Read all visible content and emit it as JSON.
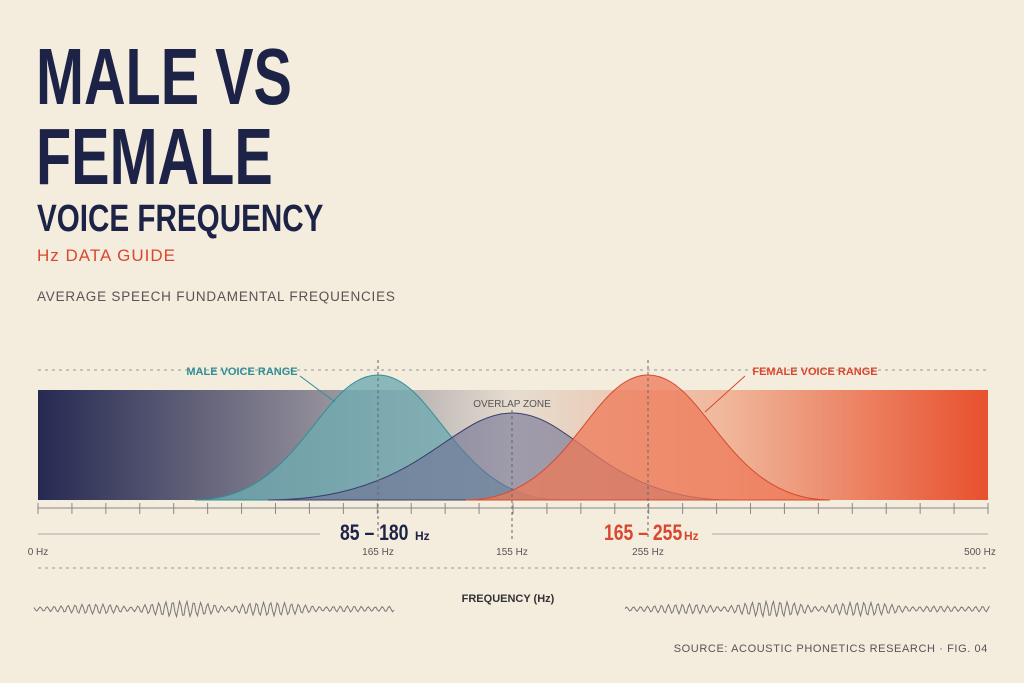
{
  "header": {
    "title_line1": "MALE VS",
    "title_line2": "FEMALE",
    "subtitle": "VOICE FREQUENCY",
    "tagline": "Hz DATA GUIDE",
    "caption": "AVERAGE SPEECH FUNDAMENTAL FREQUENCIES"
  },
  "diagram": {
    "male_label": "MALE VOICE RANGE",
    "female_label": "FEMALE VOICE RANGE",
    "overlap_label": "OVERLAP ZONE",
    "male_range": {
      "value": "85 – 180",
      "unit": "Hz"
    },
    "female_range": {
      "value": "165 – 255",
      "unit": "Hz"
    },
    "axis_labels": [
      "0 Hz",
      "165 Hz",
      "155 Hz",
      "255 Hz",
      "500 Hz"
    ],
    "axis_title": "FREQUENCY (Hz)"
  },
  "footer": {
    "source": "SOURCE: ACOUSTIC PHONETICS RESEARCH · FIG. 04"
  }
}
